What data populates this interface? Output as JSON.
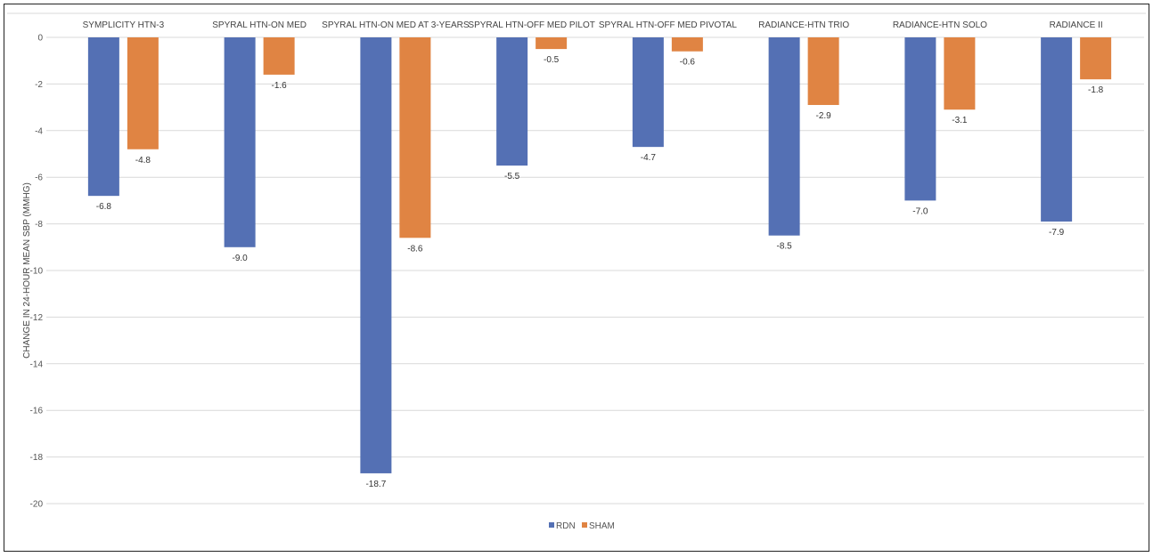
{
  "chart_data": {
    "type": "bar",
    "ylabel": "CHANGE IN 24-HOUR MEAN SBP (MMHG)",
    "xlabel": "",
    "categories": [
      "SYMPLICITY HTN-3",
      "SPYRAL HTN-ON MED",
      "SPYRAL HTN-ON MED AT 3-YEARS",
      "SPYRAL HTN-OFF MED PILOT",
      "SPYRAL HTN-OFF MED PIVOTAL",
      "RADIANCE-HTN TRIO",
      "RADIANCE-HTN SOLO",
      "RADIANCE II"
    ],
    "series": [
      {
        "name": "RDN",
        "color": "#5470b4",
        "values": [
          -6.8,
          -9.0,
          -18.7,
          -5.5,
          -4.7,
          -8.5,
          -7.0,
          -7.9
        ],
        "labels": [
          "-6.8",
          "-9.0",
          "-18.7",
          "-5.5",
          "-4.7",
          "-8.5",
          "-7.0",
          "-7.9"
        ]
      },
      {
        "name": "SHAM",
        "color": "#e08443",
        "values": [
          -4.8,
          -1.6,
          -8.6,
          -0.5,
          -0.6,
          -2.9,
          -3.1,
          -1.8
        ],
        "labels": [
          "-4.8",
          "-1.6",
          "-8.6",
          "-0.5",
          "-0.6",
          "-2.9",
          "-3.1",
          "-1.8"
        ]
      }
    ],
    "ylim": [
      -20,
      0
    ],
    "yticks": [
      "0",
      "-2",
      "-4",
      "-6",
      "-8",
      "-10",
      "-12",
      "-14",
      "-16",
      "-18",
      "-20"
    ],
    "grid": true,
    "legend": "bottom-center",
    "category_axis_position": "top"
  }
}
